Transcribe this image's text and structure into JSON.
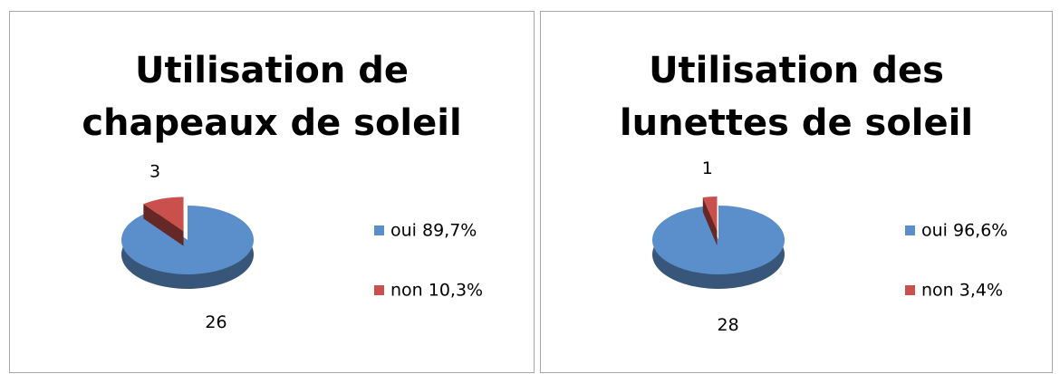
{
  "chart_data": [
    {
      "type": "pie",
      "title": "Utilisation de chapeaux de soleil",
      "categories": [
        "oui 89,7%",
        "non 10,3%"
      ],
      "values": [
        26,
        3
      ],
      "colors": [
        "#5b8fcb",
        "#c9504d"
      ],
      "legend": "right"
    },
    {
      "type": "pie",
      "title": "Utilisation des lunettes de soleil",
      "categories": [
        "oui 96,6%",
        "non 3,4%"
      ],
      "values": [
        28,
        1
      ],
      "colors": [
        "#5b8fcb",
        "#c9504d"
      ],
      "legend": "right"
    }
  ]
}
